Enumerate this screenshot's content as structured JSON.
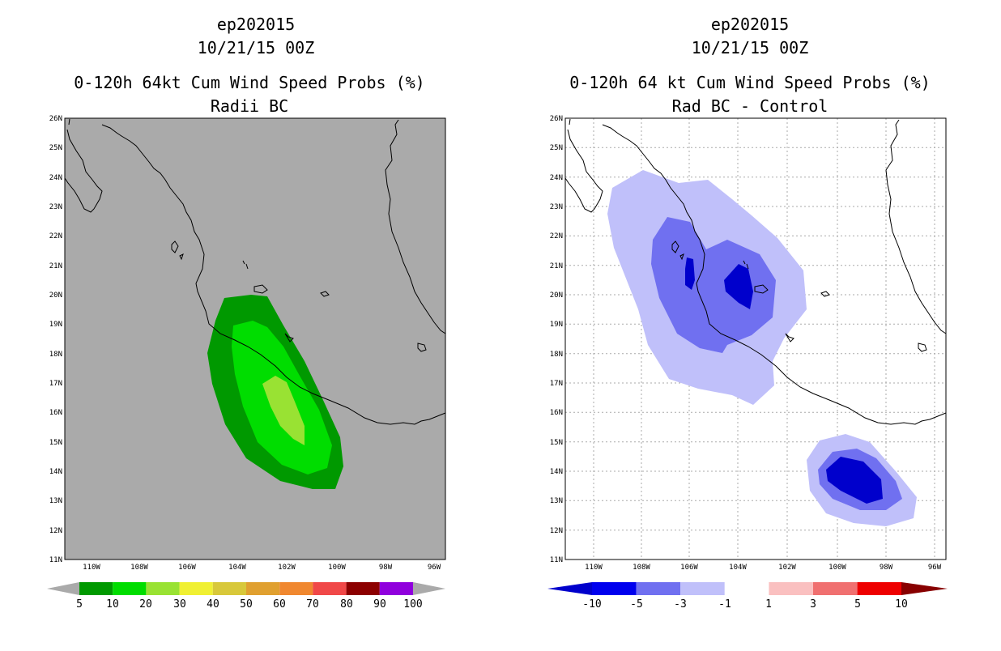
{
  "left_panel": {
    "title_line1": "ep202015",
    "title_line2": "10/21/15 00Z",
    "title_line3": "0-120h 64kt Cum Wind Speed Probs (%)",
    "title_line4": "Radii BC",
    "colorbar_labels": [
      "5",
      "10",
      "20",
      "30",
      "40",
      "50",
      "60",
      "70",
      "80",
      "90",
      "100"
    ],
    "colorbar_colors": [
      "#009900",
      "#00dd00",
      "#99e233",
      "#f0f033",
      "#d8c83a",
      "#e0a030",
      "#f08830",
      "#f04848",
      "#8c0000",
      "#9000dd"
    ]
  },
  "right_panel": {
    "title_line1": "ep202015",
    "title_line2": "10/21/15 00Z",
    "title_line3": "0-120h 64 kt Cum Wind Speed Probs (%)",
    "title_line4": "Rad BC - Control",
    "colorbar_labels": [
      "-10",
      "-5",
      "-3",
      "-1",
      "1",
      "3",
      "5",
      "10"
    ],
    "colorbar_colors": [
      "#0000cc",
      "#0000ee",
      "#7070f0",
      "#c0c0fa",
      "#ffffff",
      "#fac0c0",
      "#f07070",
      "#ee0000",
      "#880000"
    ]
  },
  "axes": {
    "lat_labels": [
      "26N",
      "25N",
      "24N",
      "23N",
      "22N",
      "21N",
      "20N",
      "19N",
      "18N",
      "17N",
      "16N",
      "15N",
      "14N",
      "13N",
      "12N",
      "11N"
    ],
    "lon_labels": [
      "110W",
      "108W",
      "106W",
      "104W",
      "102W",
      "100W",
      "98W",
      "96W"
    ]
  },
  "colors": {
    "map_background_left": "#aaaaaa",
    "map_background_right": "#ffffff"
  }
}
